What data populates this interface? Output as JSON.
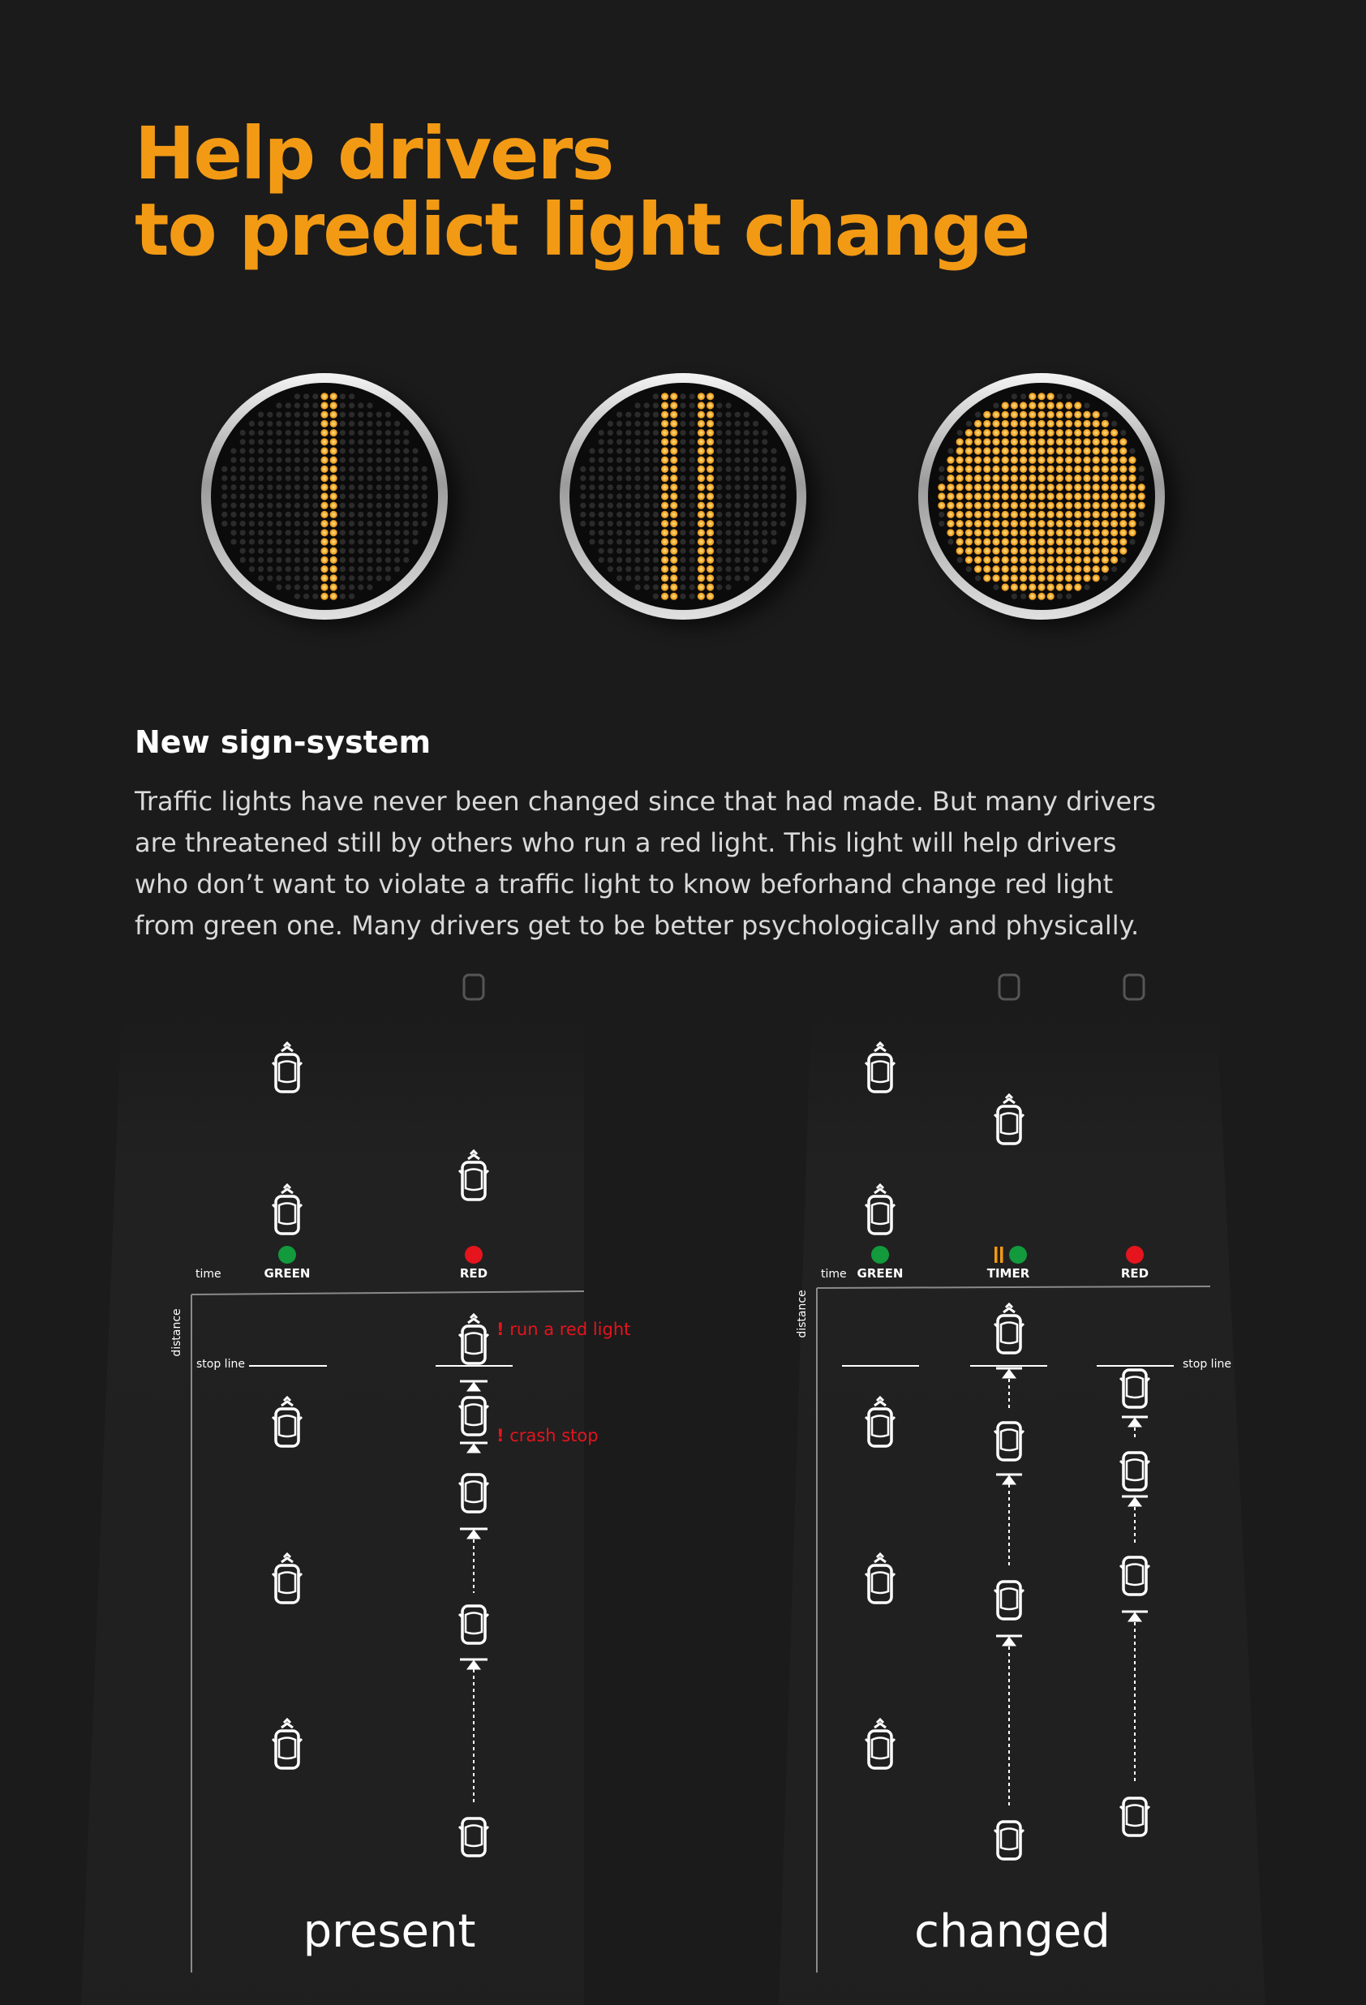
{
  "title": {
    "line1": "Help drivers",
    "line2": "to predict light change"
  },
  "lamps": [
    {
      "name": "one-bar",
      "pattern": "single-vertical-bar"
    },
    {
      "name": "two-bars",
      "pattern": "double-vertical-bar"
    },
    {
      "name": "full-circle",
      "pattern": "full-circle"
    }
  ],
  "section": {
    "heading": "New sign-system",
    "lines": [
      "Traffic lights have never been changed since that had made. But many drivers",
      "are threatened still by others who run a red light. This light will help drivers",
      "who don’t want to violate a traffic light to know beforhand change red light",
      "from green one. Many drivers get to be better psychologically and physically."
    ]
  },
  "colors": {
    "accent": "#f39a14",
    "green": "#129a3c",
    "red": "#e5141d",
    "alert": "#e5141d",
    "background": "#1b1b1b"
  },
  "diagram": {
    "axis_time": "time",
    "axis_distance": "distance",
    "stop_line": "stop line",
    "labels": {
      "green": "GREEN",
      "red": "RED",
      "timer": "TIMER"
    },
    "alerts": {
      "run_red": "run a red light",
      "crash": "crash stop",
      "mark": "!"
    },
    "present_caption": "present",
    "changed_caption": "changed"
  }
}
